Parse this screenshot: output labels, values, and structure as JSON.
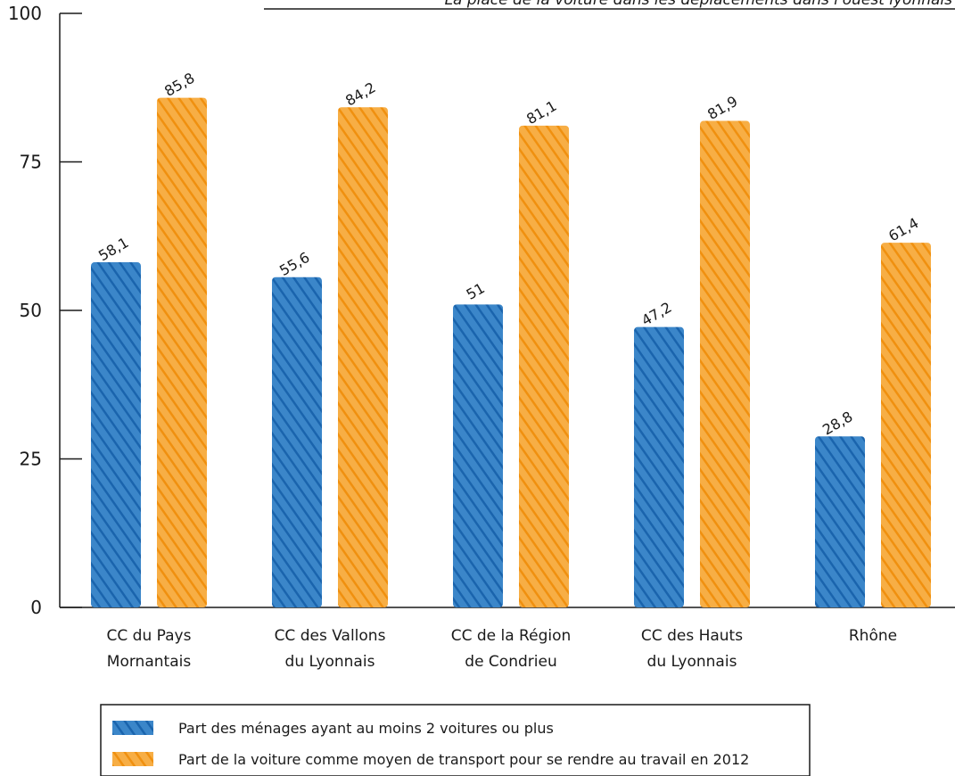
{
  "chart_data": {
    "type": "bar",
    "title": "La place de la voiture dans les déplacements dans l'ouest lyonnais",
    "categories": [
      [
        "CC du Pays",
        "Mornantais"
      ],
      [
        "CC des Vallons",
        "du Lyonnais"
      ],
      [
        "CC de la Région",
        "de Condrieu"
      ],
      [
        "CC des Hauts",
        "du Lyonnais"
      ],
      [
        "Rhône"
      ]
    ],
    "series": [
      {
        "name": "Part des ménages ayant au moins 2 voitures ou plus",
        "color": "#1f6fba",
        "values": [
          58.1,
          55.6,
          51,
          47.2,
          28.8
        ],
        "labels": [
          "58,1",
          "55,6",
          "51",
          "47,2",
          "28,8"
        ]
      },
      {
        "name": "Part de la voiture comme moyen de transport pour se rendre au travail en 2012",
        "color": "#f39a1e",
        "values": [
          85.8,
          84.2,
          81.1,
          81.9,
          61.4
        ],
        "labels": [
          "85,8",
          "84,2",
          "81,1",
          "81,9",
          "61,4"
        ]
      }
    ],
    "yticks": [
      "0",
      "25",
      "50",
      "75",
      "100"
    ],
    "ylim": [
      0,
      100
    ],
    "grid": false,
    "legend_position": "bottom"
  }
}
